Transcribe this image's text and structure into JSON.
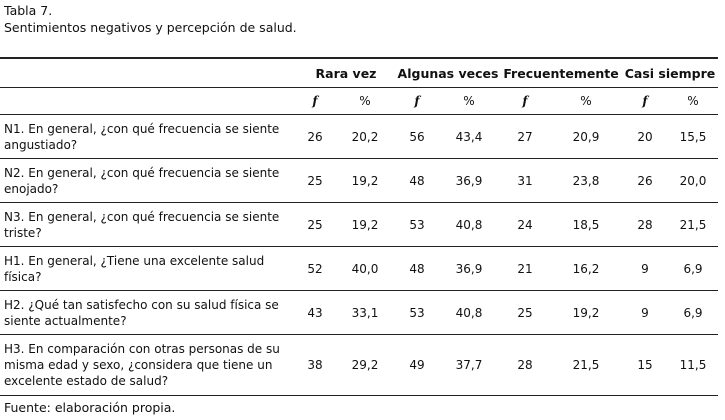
{
  "caption": {
    "number": "Tabla 7.",
    "title": "Sentimientos negativos y percepción de salud."
  },
  "table": {
    "groups": [
      "Rara vez",
      "Algunas veces",
      "Frecuentemente",
      "Casi siempre"
    ],
    "subheaders": [
      "f",
      "%",
      "f",
      "%",
      "f",
      "%",
      "f",
      "%"
    ],
    "rows": [
      {
        "q": "N1. En general, ¿con qué frecuencia se siente angustiado?",
        "v": [
          "26",
          "20,2",
          "56",
          "43,4",
          "27",
          "20,9",
          "20",
          "15,5"
        ]
      },
      {
        "q": "N2. En general, ¿con qué frecuencia se siente enojado?",
        "v": [
          "25",
          "19,2",
          "48",
          "36,9",
          "31",
          "23,8",
          "26",
          "20,0"
        ]
      },
      {
        "q": "N3. En general, ¿con qué frecuencia se siente triste?",
        "v": [
          "25",
          "19,2",
          "53",
          "40,8",
          "24",
          "18,5",
          "28",
          "21,5"
        ]
      },
      {
        "q": "H1. En general, ¿Tiene una excelente salud física?",
        "v": [
          "52",
          "40,0",
          "48",
          "36,9",
          "21",
          "16,2",
          "9",
          "6,9"
        ]
      },
      {
        "q": "H2. ¿Qué tan satisfecho con su salud física se siente actualmente?",
        "v": [
          "43",
          "33,1",
          "53",
          "40,8",
          "25",
          "19,2",
          "9",
          "6,9"
        ]
      },
      {
        "q": "H3. En comparación con otras personas de su misma edad y sexo, ¿considera que tiene un excelente estado de salud?",
        "v": [
          "38",
          "29,2",
          "49",
          "37,7",
          "28",
          "21,5",
          "15",
          "11,5"
        ]
      }
    ]
  },
  "footer": "Fuente: elaboración propia."
}
